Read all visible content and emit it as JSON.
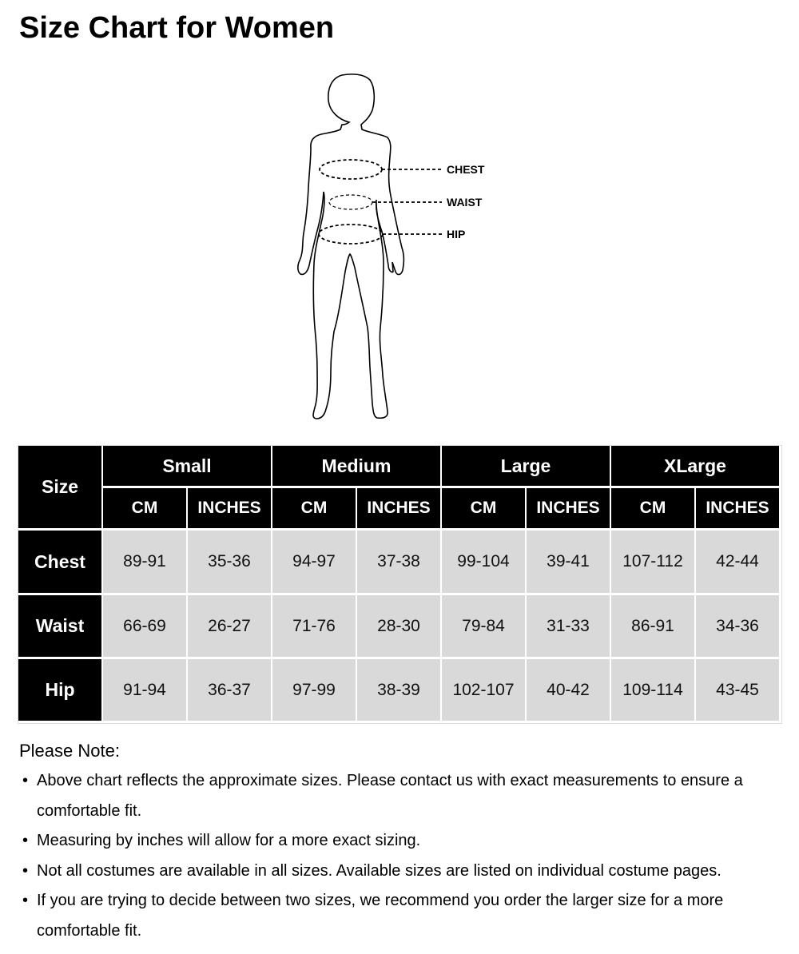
{
  "title": "Size Chart for Women",
  "figure": {
    "labels": [
      "CHEST",
      "WAIST",
      "HIP"
    ]
  },
  "table": {
    "corner": "Size",
    "sizes": [
      "Small",
      "Medium",
      "Large",
      "XLarge"
    ],
    "units": [
      "CM",
      "INCHES"
    ],
    "rows": [
      {
        "label": "Chest",
        "values": [
          "89-91",
          "35-36",
          "94-97",
          "37-38",
          "99-104",
          "39-41",
          "107-112",
          "42-44"
        ]
      },
      {
        "label": "Waist",
        "values": [
          "66-69",
          "26-27",
          "71-76",
          "28-30",
          "79-84",
          "31-33",
          "86-91",
          "34-36"
        ]
      },
      {
        "label": "Hip",
        "values": [
          "91-94",
          "36-37",
          "97-99",
          "38-39",
          "102-107",
          "40-42",
          "109-114",
          "43-45"
        ]
      }
    ],
    "colors": {
      "header_bg": "#000000",
      "cell_bg": "#d9d9d9"
    }
  },
  "notes": {
    "heading": "Please Note:",
    "bullet": "•",
    "items": [
      "Above chart reflects the approximate sizes. Please contact us with exact measurements to ensure a comfortable fit.",
      "Measuring by inches will allow for a more exact sizing.",
      "Not all costumes are available in all sizes. Available sizes are listed on individual costume pages.",
      "If you are trying to decide between two sizes, we recommend you order the larger size for a more comfortable fit."
    ]
  }
}
